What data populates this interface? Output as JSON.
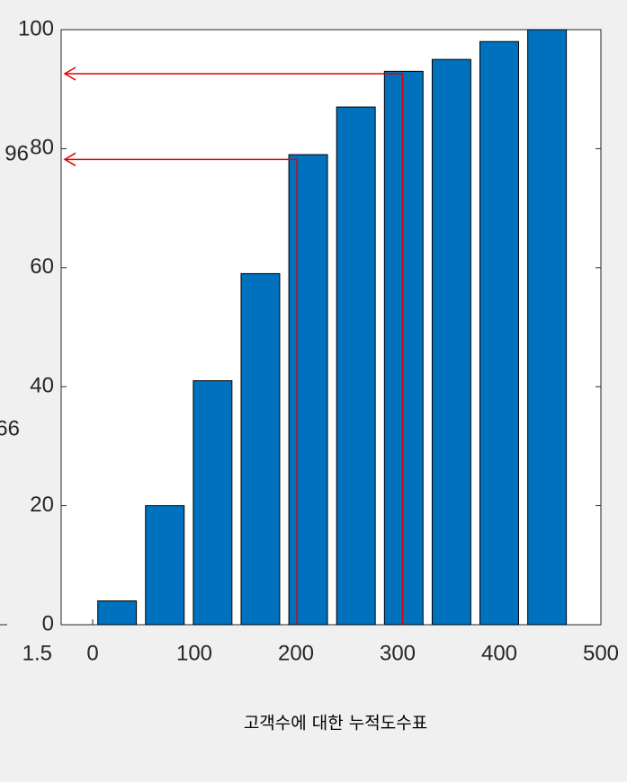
{
  "chart_data": {
    "type": "bar",
    "x": [
      24,
      71,
      118,
      165,
      212,
      259,
      306,
      353,
      400,
      447
    ],
    "values": [
      4,
      20,
      41,
      59,
      79,
      87,
      93,
      95,
      98,
      100
    ],
    "color": "#0072bd",
    "bar_width": 38,
    "xlim": [
      -31,
      500
    ],
    "xticks": [
      0,
      100,
      200,
      300,
      400,
      500
    ],
    "ylim": [
      0,
      100
    ],
    "yticks": [
      0,
      20,
      40,
      60,
      80,
      100
    ],
    "reference_arrows": [
      {
        "x": 305,
        "y": 92.6
      },
      {
        "x": 201,
        "y": 78.2
      }
    ],
    "arrow_color": "#e00000",
    "caption": "고객수에 대한 누적도수표",
    "neighbor_fragments": [
      "96",
      "66",
      "1.5"
    ]
  }
}
